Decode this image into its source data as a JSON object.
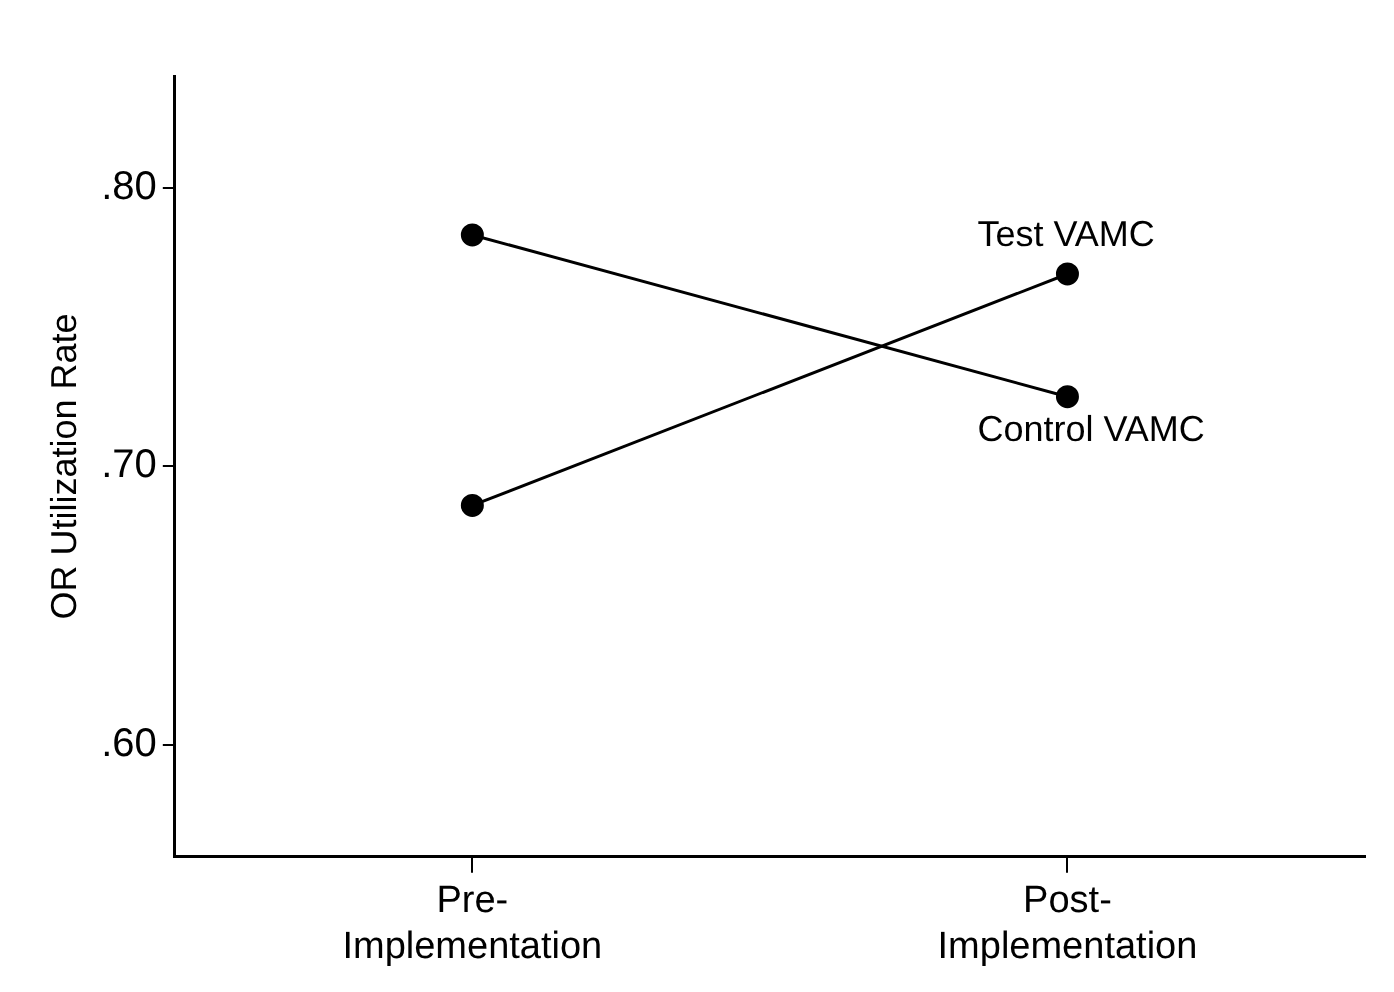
{
  "chart_data": {
    "type": "line",
    "ylabel": "OR Utilization Rate",
    "categories": [
      "Pre-Implementation",
      "Post-Implementation"
    ],
    "series": [
      {
        "name": "Test VAMC",
        "color": "#000000",
        "values": [
          0.686,
          0.769
        ]
      },
      {
        "name": "Control VAMC",
        "color": "#000000",
        "values": [
          0.783,
          0.725
        ]
      }
    ],
    "ylim": [
      0.56,
      0.84
    ],
    "yticks": [
      {
        "value": 0.6,
        "label": ".60"
      },
      {
        "value": 0.7,
        "label": ".70"
      },
      {
        "value": 0.8,
        "label": ".80"
      }
    ],
    "grid": false,
    "legend": false,
    "marker": "circle",
    "line_style": "solid"
  }
}
